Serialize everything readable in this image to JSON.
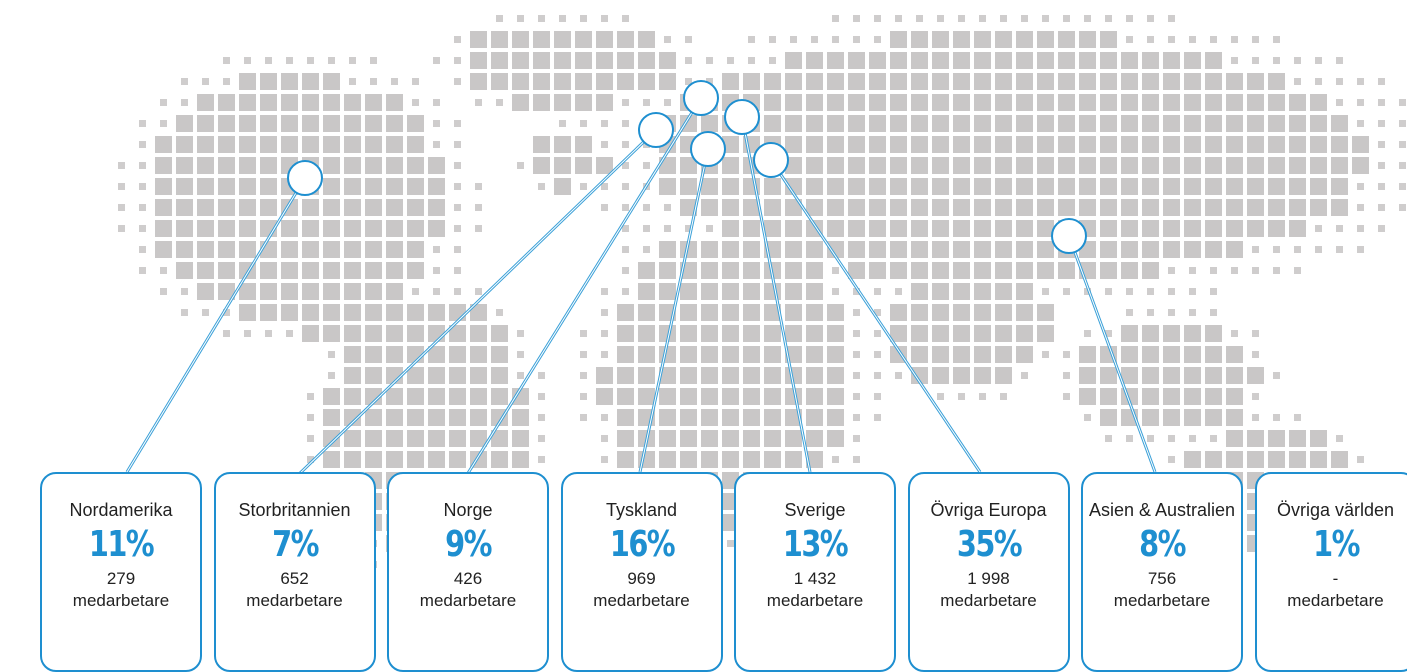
{
  "regions": [
    {
      "name": "Nordamerika",
      "share": "11%",
      "count": "279",
      "unit": "medarbetare"
    },
    {
      "name": "Storbritannien",
      "share": "7%",
      "count": "652",
      "unit": "medarbetare"
    },
    {
      "name": "Norge",
      "share": "9%",
      "count": "426",
      "unit": "medarbetare"
    },
    {
      "name": "Tyskland",
      "share": "16%",
      "count": "969",
      "unit": "medarbetare"
    },
    {
      "name": "Sverige",
      "share": "13%",
      "count": "1 432",
      "unit": "medarbetare"
    },
    {
      "name": "Övriga Europa",
      "share": "35%",
      "count": "1 998",
      "unit": "medarbetare"
    },
    {
      "name": "Asien & Australien",
      "share": "8%",
      "count": "756",
      "unit": "medarbetare"
    },
    {
      "name": "Övriga världen",
      "share": "1%",
      "count": "-",
      "unit": "medarbetare"
    }
  ]
}
